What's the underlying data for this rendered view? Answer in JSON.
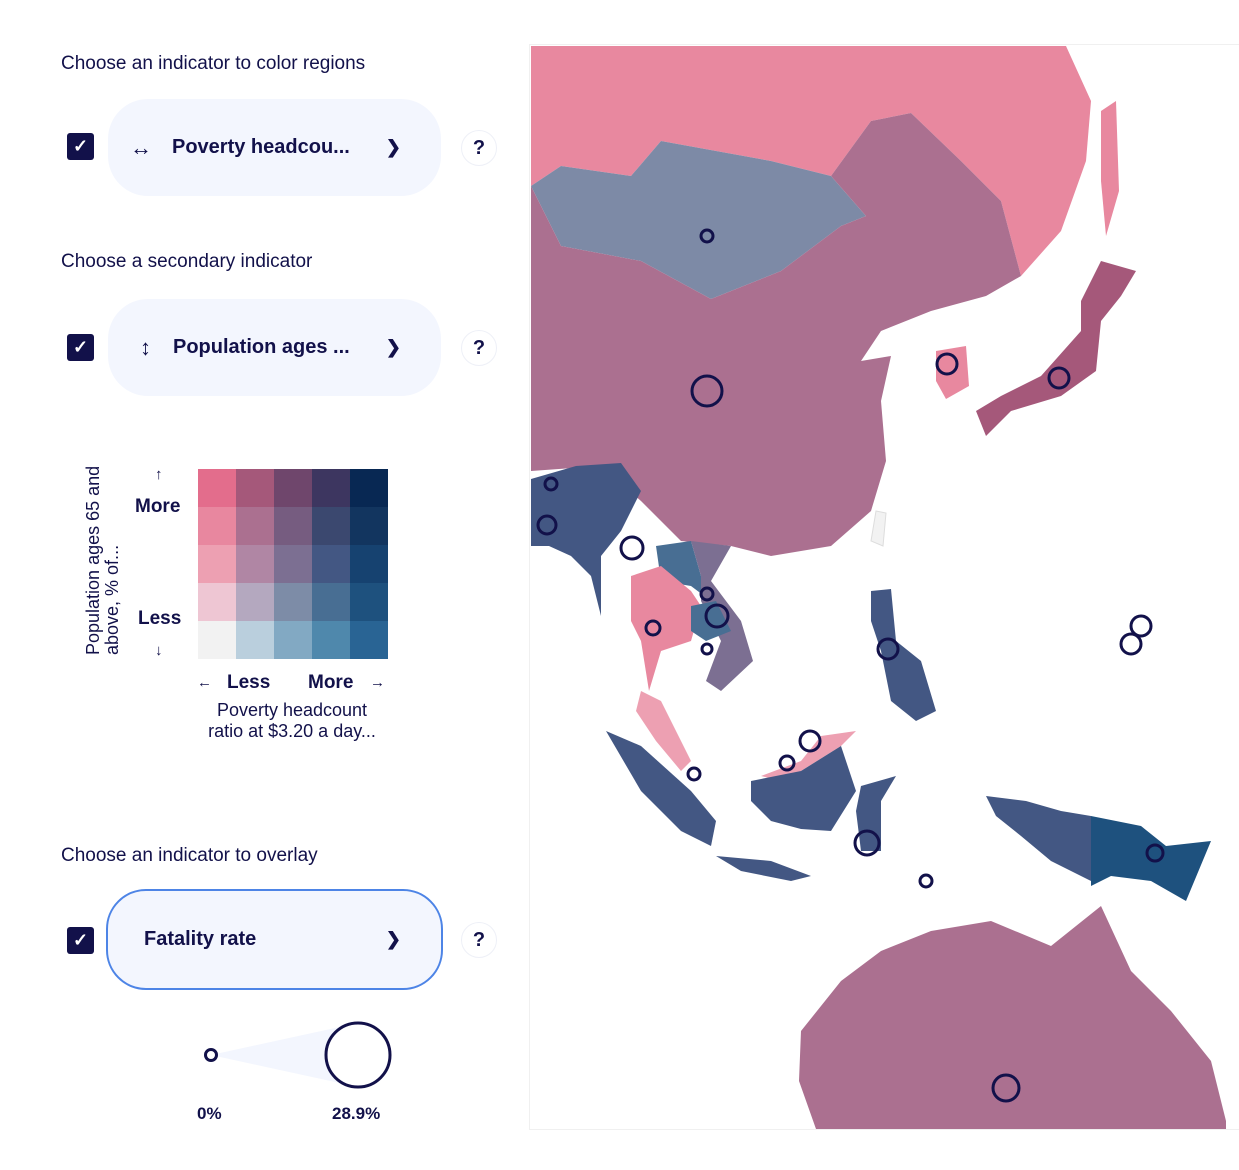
{
  "primary": {
    "heading": "Choose an indicator to color regions",
    "checked": true,
    "icon": "horizontal-arrows-icon",
    "value": "Poverty headcou...",
    "help": "?"
  },
  "secondary": {
    "heading": "Choose a secondary indicator",
    "checked": true,
    "icon": "vertical-arrows-icon",
    "value": "Population ages ...",
    "help": "?"
  },
  "legend": {
    "y_title": "Population ages 65 and above, % of...",
    "y_more": "More",
    "y_less": "Less",
    "x_less": "Less",
    "x_more": "More",
    "x_title": "Poverty headcount ratio at $3.20 a day...",
    "up_arrow": "↑",
    "down_arrow": "↓",
    "left_arrow": "←",
    "right_arrow": "→",
    "colors": [
      [
        "#e36d8c",
        "#a5587a",
        "#6f466c",
        "#3d3660",
        "#082853"
      ],
      [
        "#e8879f",
        "#ab7090",
        "#765c80",
        "#3b486f",
        "#12355f"
      ],
      [
        "#eda0b2",
        "#b086a4",
        "#7c6f92",
        "#435783",
        "#164270"
      ],
      [
        "#eec6d3",
        "#b4a8bf",
        "#7d8ca7",
        "#486e93",
        "#1e517e"
      ],
      [
        "#f2f2f2",
        "#bacfdd",
        "#82a9c3",
        "#4f88ac",
        "#296494"
      ]
    ]
  },
  "overlay": {
    "heading": "Choose an indicator to overlay",
    "checked": true,
    "value": "Fatality rate",
    "help": "?",
    "min_label": "0%",
    "max_label": "28.9%"
  },
  "map": {
    "circle_color": "#12114a"
  }
}
